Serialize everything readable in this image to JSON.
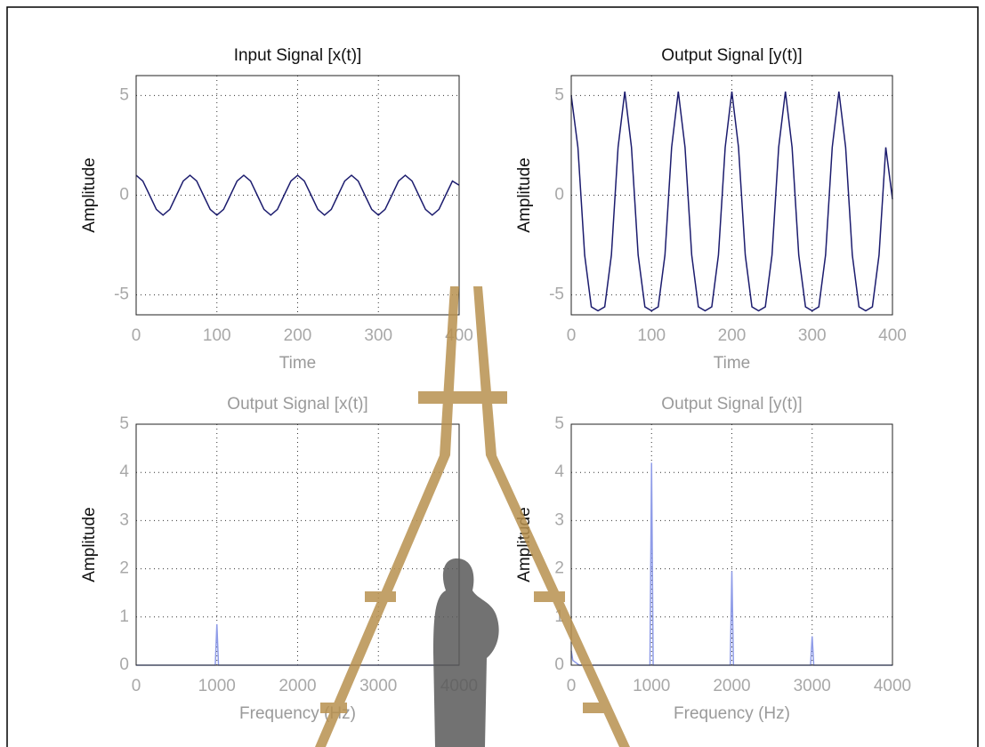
{
  "chart_data": [
    {
      "type": "line",
      "title": "Input Signal [x(t)]",
      "xlabel": "Time",
      "ylabel": "Amplitude",
      "x": [
        0,
        8.3,
        16.7,
        25,
        33.3,
        41.7,
        50,
        58.3,
        66.7,
        75,
        83.3,
        91.7,
        100,
        108.3,
        116.7,
        125,
        133.3,
        141.7,
        150,
        158.3,
        166.7,
        175,
        183.3,
        191.7,
        200,
        208.3,
        216.7,
        225,
        233.3,
        241.7,
        250,
        258.3,
        266.7,
        275,
        283.3,
        291.7,
        300,
        308.3,
        316.7,
        325,
        333.3,
        341.7,
        350,
        358.3,
        366.7,
        375,
        383.3,
        391.7,
        400
      ],
      "values": [
        1,
        0.71,
        0,
        -0.71,
        -1,
        -0.71,
        0,
        0.71,
        1,
        0.71,
        0,
        -0.71,
        -1,
        -0.71,
        0,
        0.71,
        1,
        0.71,
        0,
        -0.71,
        -1,
        -0.71,
        0,
        0.71,
        1,
        0.71,
        0,
        -0.71,
        -1,
        -0.71,
        0,
        0.71,
        1,
        0.71,
        0,
        -0.71,
        -1,
        -0.71,
        0,
        0.71,
        1,
        0.71,
        0,
        -0.71,
        -1,
        -0.71,
        0,
        0.71,
        0.5
      ],
      "color": "#1c1c6e",
      "xlim": [
        0,
        400
      ],
      "xticks": [
        0,
        100,
        200,
        300,
        400
      ],
      "ylim": [
        -6,
        6
      ],
      "yticks": [
        -5,
        0,
        5
      ],
      "grid": true
    },
    {
      "type": "line",
      "title": "Output Signal [y(t)]",
      "xlabel": "Time",
      "ylabel": "Amplitude",
      "x": [
        0,
        8.3,
        16.7,
        25,
        33.3,
        41.7,
        50,
        58.3,
        66.7,
        75,
        83.3,
        91.7,
        100,
        108.3,
        116.7,
        125,
        133.3,
        141.7,
        150,
        158.3,
        166.7,
        175,
        183.3,
        191.7,
        200,
        208.3,
        216.7,
        225,
        233.3,
        241.7,
        250,
        258.3,
        266.7,
        275,
        283.3,
        291.7,
        300,
        308.3,
        316.7,
        325,
        333.3,
        341.7,
        350,
        358.3,
        366.7,
        375,
        383.3,
        391.7,
        400
      ],
      "values": [
        5,
        2.4,
        -3,
        -5.6,
        -5.8,
        -5.6,
        -3,
        2.4,
        5.2,
        2.4,
        -3,
        -5.6,
        -5.8,
        -5.6,
        -3,
        2.4,
        5.2,
        2.4,
        -3,
        -5.6,
        -5.8,
        -5.6,
        -3,
        2.4,
        5.2,
        2.4,
        -3,
        -5.6,
        -5.8,
        -5.6,
        -3,
        2.4,
        5.2,
        2.4,
        -3,
        -5.6,
        -5.8,
        -5.6,
        -3,
        2.4,
        5.2,
        2.4,
        -3,
        -5.6,
        -5.8,
        -5.6,
        -3,
        2.4,
        -0.2
      ],
      "color": "#1c1c6e",
      "xlim": [
        0,
        400
      ],
      "xticks": [
        0,
        100,
        200,
        300,
        400
      ],
      "ylim": [
        -6,
        6
      ],
      "yticks": [
        -5,
        0,
        5
      ],
      "grid": true
    },
    {
      "type": "line",
      "title": "Output Signal [x(t)]",
      "xlabel": "Frequency (Hz)",
      "ylabel": "Amplitude",
      "x": [
        0,
        980,
        1000,
        1020,
        4000
      ],
      "values": [
        0,
        0,
        0.85,
        0,
        0
      ],
      "color": "#8f9ce8",
      "xlim": [
        0,
        4000
      ],
      "xticks": [
        0,
        1000,
        2000,
        3000,
        4000
      ],
      "ylim": [
        0,
        5
      ],
      "yticks": [
        0,
        1,
        2,
        3,
        4,
        5
      ],
      "grid": true
    },
    {
      "type": "line",
      "title": "Output Signal [y(t)]",
      "xlabel": "Frequency (Hz)",
      "ylabel": "Amplitude",
      "x": [
        0,
        20,
        100,
        980,
        1000,
        1020,
        1980,
        2000,
        2020,
        2980,
        3000,
        3020,
        4000
      ],
      "values": [
        0.3,
        0.1,
        0,
        0,
        4.2,
        0,
        0,
        1.95,
        0,
        0,
        0.6,
        0,
        0
      ],
      "color": "#8f9ce8",
      "xlim": [
        0,
        4000
      ],
      "xticks": [
        0,
        1000,
        2000,
        3000,
        4000
      ],
      "ylim": [
        0,
        5
      ],
      "yticks": [
        0,
        1,
        2,
        3,
        4,
        5
      ],
      "grid": true
    }
  ]
}
